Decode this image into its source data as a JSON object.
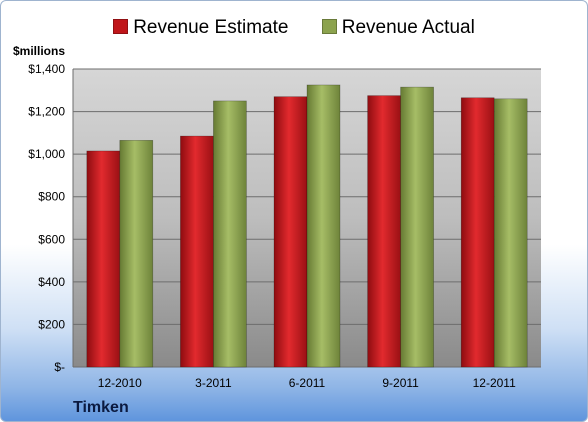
{
  "legend": {
    "estimate_label": "Revenue Estimate",
    "actual_label": "Revenue Actual"
  },
  "y_unit_label": "$millions",
  "company": "Timken",
  "colors": {
    "estimate": "#c0161a",
    "actual": "#8ca34e"
  },
  "chart_data": {
    "type": "bar",
    "categories": [
      "12-2010",
      "3-2011",
      "6-2011",
      "9-2011",
      "12-2011"
    ],
    "series": [
      {
        "name": "Revenue Estimate",
        "values": [
          1015,
          1085,
          1270,
          1275,
          1265
        ]
      },
      {
        "name": "Revenue Actual",
        "values": [
          1065,
          1250,
          1325,
          1315,
          1260
        ]
      }
    ],
    "ylim": [
      0,
      1400
    ],
    "yticks": [
      0,
      200,
      400,
      600,
      800,
      1000,
      1200,
      1400
    ],
    "ytick_labels": [
      "$-",
      "$200",
      "$400",
      "$600",
      "$800",
      "$1,000",
      "$1,200",
      "$1,400"
    ],
    "ylabel": "$millions",
    "grid": true,
    "legend_position": "top"
  }
}
